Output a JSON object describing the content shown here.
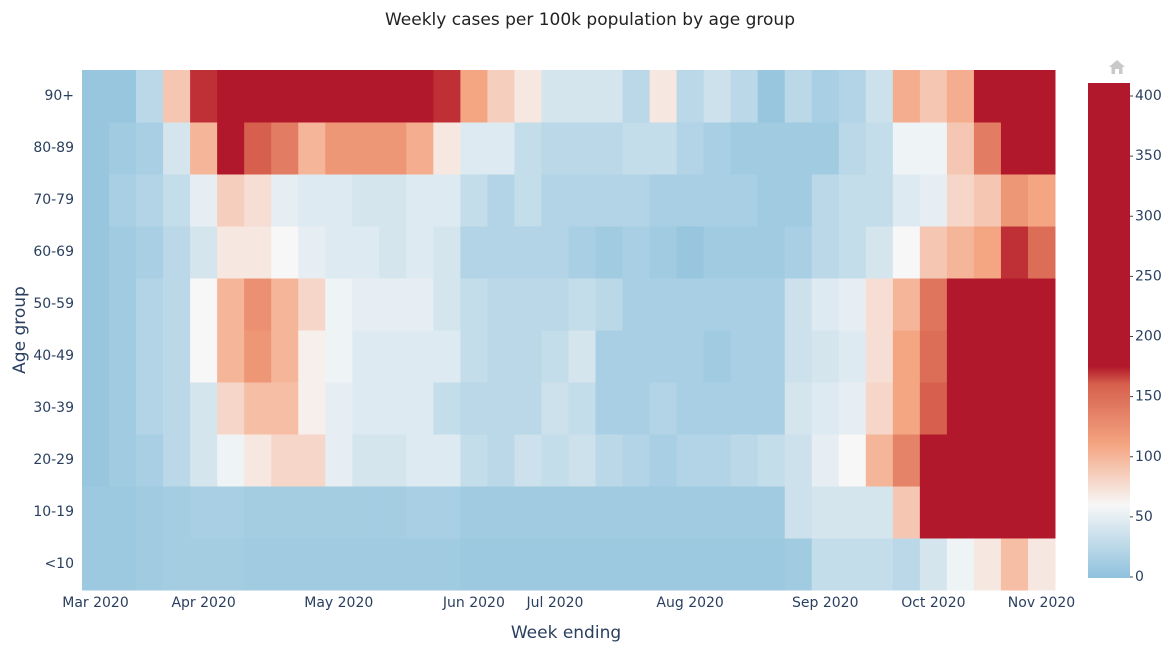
{
  "chart_data": {
    "type": "heatmap",
    "title": "Weekly cases per 100k population by age group",
    "x_label": "Week ending",
    "y_label": "Age group",
    "x": [
      "Mar 2020",
      null,
      null,
      null,
      "Apr 2020",
      null,
      null,
      null,
      null,
      "May 2020",
      null,
      null,
      null,
      null,
      "Jun 2020",
      null,
      null,
      "Jul 2020",
      null,
      null,
      null,
      null,
      "Aug 2020",
      null,
      null,
      null,
      null,
      "Sep 2020",
      null,
      null,
      null,
      "Oct 2020",
      null,
      null,
      null,
      "Nov 2020"
    ],
    "y": [
      "<10",
      "10-19",
      "20-29",
      "30-39",
      "40-49",
      "50-59",
      "60-69",
      "70-79",
      "80-89",
      "90+"
    ],
    "z": [
      [
        8,
        8,
        10,
        12,
        12,
        12,
        10,
        10,
        10,
        10,
        10,
        10,
        10,
        10,
        8,
        8,
        8,
        8,
        8,
        8,
        8,
        8,
        8,
        8,
        8,
        8,
        10,
        30,
        30,
        30,
        25,
        40,
        55,
        70,
        95,
        70
      ],
      [
        8,
        8,
        10,
        12,
        15,
        15,
        12,
        12,
        12,
        12,
        12,
        12,
        15,
        15,
        10,
        10,
        10,
        10,
        10,
        10,
        10,
        10,
        10,
        10,
        10,
        10,
        35,
        40,
        40,
        40,
        90,
        250,
        250,
        250,
        250,
        250
      ],
      [
        5,
        10,
        15,
        25,
        40,
        55,
        70,
        80,
        80,
        50,
        40,
        40,
        45,
        45,
        30,
        25,
        35,
        30,
        35,
        25,
        20,
        15,
        20,
        20,
        25,
        30,
        35,
        50,
        60,
        100,
        135,
        250,
        250,
        250,
        250,
        250
      ],
      [
        5,
        10,
        20,
        25,
        40,
        80,
        95,
        95,
        65,
        50,
        45,
        45,
        45,
        30,
        25,
        25,
        25,
        35,
        30,
        15,
        15,
        20,
        15,
        15,
        15,
        15,
        40,
        45,
        50,
        80,
        110,
        160,
        250,
        250,
        250,
        250
      ],
      [
        5,
        10,
        20,
        25,
        60,
        100,
        120,
        100,
        65,
        55,
        45,
        45,
        45,
        45,
        30,
        25,
        25,
        30,
        40,
        15,
        15,
        15,
        15,
        10,
        15,
        15,
        35,
        40,
        45,
        75,
        110,
        150,
        250,
        250,
        250,
        250
      ],
      [
        5,
        10,
        20,
        25,
        60,
        100,
        125,
        100,
        80,
        55,
        50,
        50,
        50,
        40,
        30,
        25,
        25,
        25,
        30,
        25,
        15,
        15,
        15,
        15,
        15,
        15,
        35,
        45,
        50,
        75,
        100,
        145,
        175,
        250,
        250,
        250
      ],
      [
        5,
        10,
        15,
        25,
        40,
        70,
        70,
        60,
        50,
        45,
        45,
        40,
        45,
        40,
        20,
        20,
        20,
        20,
        15,
        10,
        15,
        10,
        5,
        10,
        10,
        10,
        15,
        25,
        30,
        40,
        60,
        90,
        100,
        110,
        170,
        150
      ],
      [
        5,
        15,
        20,
        30,
        50,
        85,
        75,
        50,
        45,
        45,
        40,
        40,
        45,
        45,
        30,
        20,
        30,
        20,
        20,
        20,
        20,
        15,
        15,
        15,
        15,
        10,
        10,
        25,
        30,
        30,
        45,
        50,
        80,
        90,
        120,
        110
      ],
      [
        5,
        10,
        15,
        40,
        100,
        200,
        160,
        140,
        100,
        120,
        120,
        120,
        105,
        70,
        45,
        45,
        30,
        25,
        25,
        25,
        30,
        30,
        20,
        15,
        10,
        10,
        10,
        10,
        25,
        30,
        55,
        55,
        90,
        140,
        250,
        250
      ],
      [
        5,
        5,
        25,
        90,
        170,
        250,
        250,
        250,
        250,
        250,
        250,
        250,
        250,
        170,
        110,
        85,
        70,
        40,
        40,
        40,
        25,
        70,
        25,
        35,
        25,
        5,
        25,
        15,
        20,
        35,
        105,
        90,
        105,
        250,
        250,
        250
      ]
    ],
    "zlim": [
      0,
      400
    ],
    "zticks": [
      0,
      50,
      100,
      150,
      200,
      250,
      300,
      350,
      400
    ],
    "colorscale": [
      [
        0,
        "#8fc2dd"
      ],
      [
        60,
        "#f7f7f7"
      ],
      [
        110,
        "#f4a582"
      ],
      [
        160,
        "#d6604d"
      ],
      [
        175,
        "#b2182b"
      ],
      [
        400,
        "#b2182b"
      ]
    ]
  }
}
